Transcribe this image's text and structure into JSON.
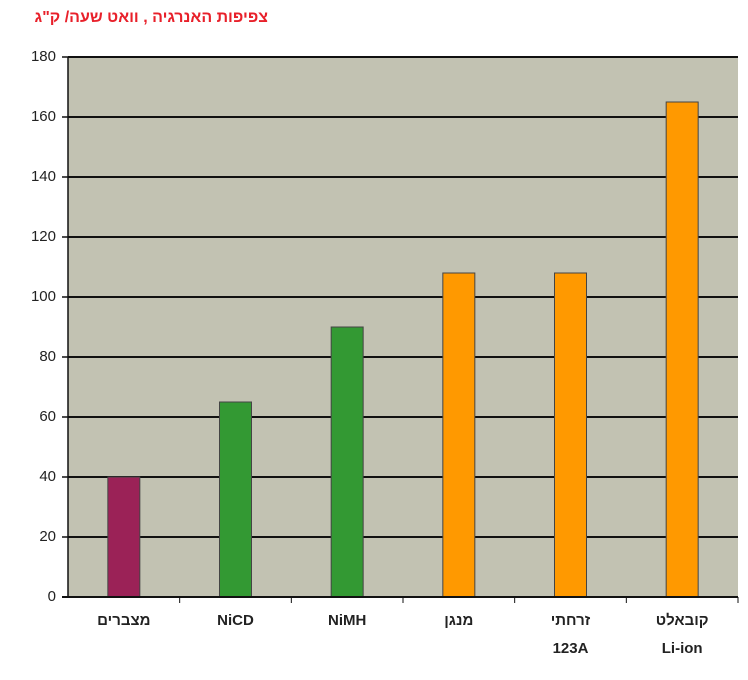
{
  "chart_data": {
    "type": "bar",
    "title": "צפיפות האנרגיה , וואט שעה/ ק\"ג",
    "categories": [
      [
        "מצברים"
      ],
      [
        "NiCD"
      ],
      [
        "NiMH"
      ],
      [
        "מנגן"
      ],
      [
        "זרחתי",
        "123A"
      ],
      [
        "קובאלט",
        "Li-ion"
      ]
    ],
    "values": [
      40,
      65,
      90,
      108,
      108,
      165
    ],
    "colors": [
      "#9b2257",
      "#339933",
      "#339933",
      "#ff9900",
      "#ff9900",
      "#ff9900"
    ],
    "ylim": [
      0,
      180
    ],
    "yticks": [
      0,
      20,
      40,
      60,
      80,
      100,
      120,
      140,
      160,
      180
    ],
    "grid": true
  }
}
